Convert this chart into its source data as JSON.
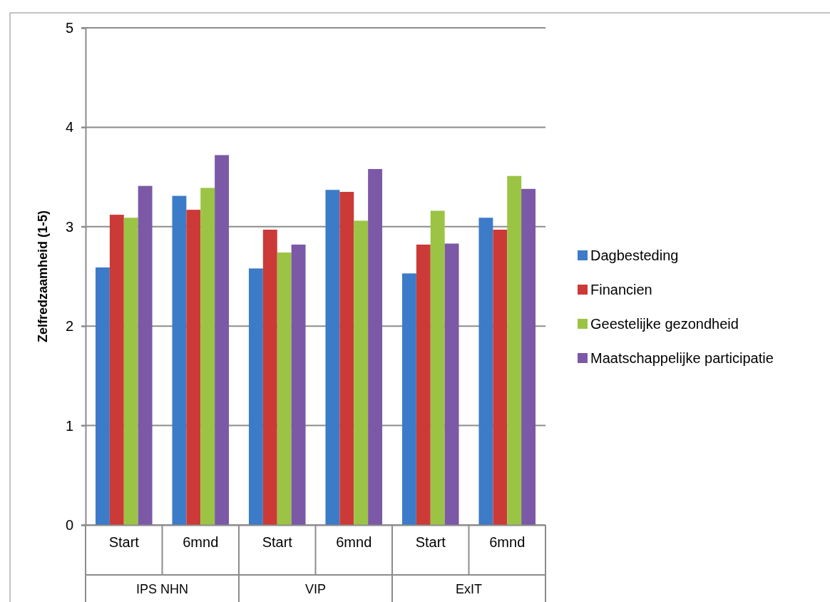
{
  "chart_data": {
    "type": "bar",
    "ylabel": "Zelfredzaamheid (1-5)",
    "categories": [
      "Start",
      "6mnd",
      "Start",
      "6mnd",
      "Start",
      "6mnd"
    ],
    "annotations": [
      "IPS NHN",
      "VIP",
      "ExIT"
    ],
    "series": [
      {
        "name": "Dagbesteding",
        "color": "#3c7bc8",
        "values": [
          2.59,
          3.31,
          2.58,
          3.37,
          2.53,
          3.09
        ]
      },
      {
        "name": "Financien",
        "color": "#cc3a37",
        "values": [
          3.12,
          3.17,
          2.97,
          3.35,
          2.82,
          2.97
        ]
      },
      {
        "name": "Geestelijke gezondheid",
        "color": "#9bc444",
        "values": [
          3.09,
          3.39,
          2.74,
          3.06,
          3.16,
          3.51
        ]
      },
      {
        "name": "Maatschappelijke participatie",
        "color": "#7b59a6",
        "values": [
          3.41,
          3.72,
          2.82,
          3.58,
          2.83,
          3.38
        ]
      }
    ],
    "ylim": [
      0,
      5
    ],
    "yticks": [
      0,
      1,
      2,
      3,
      4,
      5
    ],
    "grid": "y",
    "legend": "right"
  }
}
